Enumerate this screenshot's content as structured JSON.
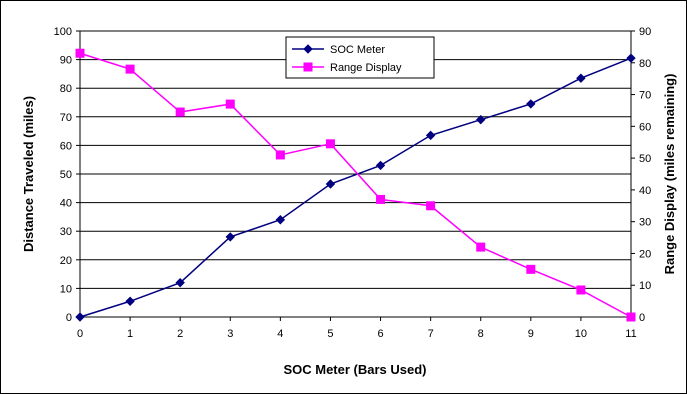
{
  "chart_data": {
    "type": "line",
    "xlabel": "SOC Meter (Bars Used)",
    "ylabel": "Distance Traveled (miles)",
    "y2label": "Range Display (miles remaining)",
    "x": [
      0,
      1,
      2,
      3,
      4,
      5,
      6,
      7,
      8,
      9,
      10,
      11
    ],
    "xlim": [
      0,
      11
    ],
    "ylim": [
      0,
      100
    ],
    "y2lim": [
      0,
      90
    ],
    "yticks": [
      0,
      10,
      20,
      30,
      40,
      50,
      60,
      70,
      80,
      90,
      100
    ],
    "y2ticks": [
      0,
      10,
      20,
      30,
      40,
      50,
      60,
      70,
      80,
      90
    ],
    "grid": true,
    "legend_position": "top-center",
    "series": [
      {
        "name": "SOC Meter",
        "axis": "left",
        "color": "#000080",
        "marker": "diamond",
        "values": [
          0,
          5.5,
          12,
          28,
          34,
          46.5,
          53,
          63.5,
          69,
          74.5,
          83.5,
          90.5
        ]
      },
      {
        "name": "Range Display",
        "axis": "right",
        "color": "#FF00FF",
        "marker": "square",
        "values": [
          83,
          78,
          64.5,
          67,
          51,
          54.5,
          37,
          35,
          22,
          15,
          8.5,
          0
        ]
      }
    ]
  }
}
